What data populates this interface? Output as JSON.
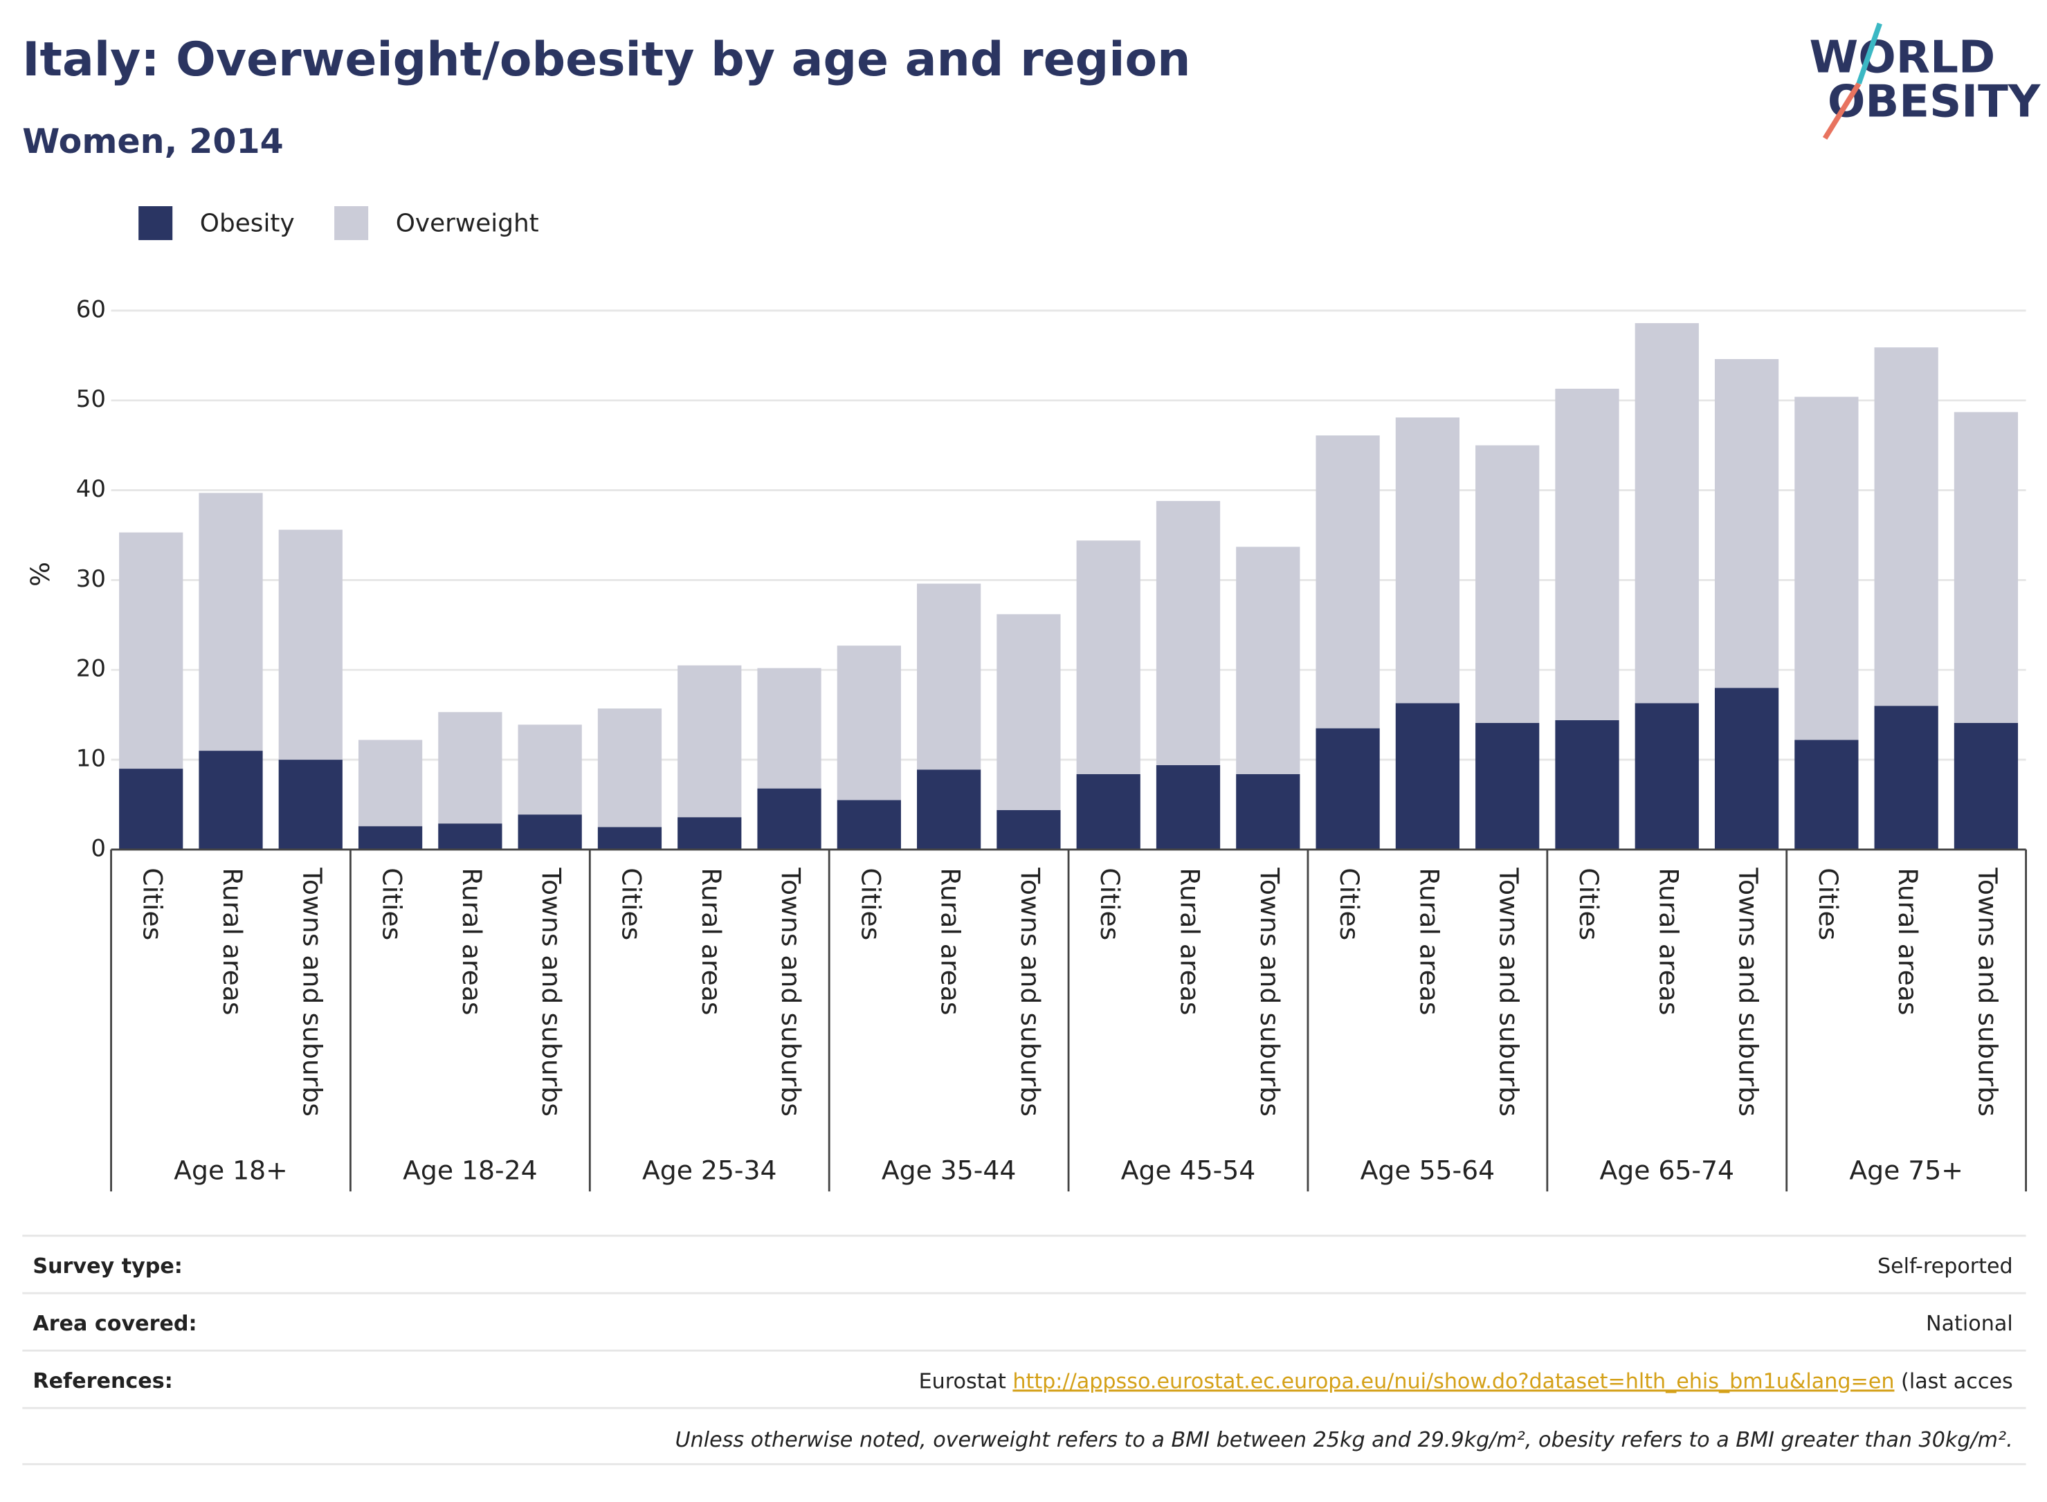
{
  "chart_data": {
    "type": "stacked_bar",
    "title": "Italy: Overweight/obesity by age and region",
    "subtitle": "Women, 2014",
    "logo": [
      "WORLD",
      "OBESITY"
    ],
    "y_label": "%",
    "groups": [
      "Age 18+",
      "Age 18-24",
      "Age 25-34",
      "Age 35-44",
      "Age 45-54",
      "Age 55-64",
      "Age 65-74",
      "Age 75+"
    ],
    "categories": [
      "Cities",
      "Rural areas",
      "Towns and suburbs",
      "Cities",
      "Rural areas",
      "Towns and suburbs",
      "Cities",
      "Rural areas",
      "Towns and suburbs",
      "Cities",
      "Rural areas",
      "Towns and suburbs",
      "Cities",
      "Rural areas",
      "Towns and suburbs",
      "Cities",
      "Rural areas",
      "Towns and suburbs",
      "Cities",
      "Rural areas",
      "Towns and suburbs",
      "Cities",
      "Rural areas",
      "Towns and suburbs"
    ],
    "series": [
      {
        "name": "Obesity",
        "color": "#2a3563",
        "values": [
          9.0,
          11.0,
          10.0,
          2.6,
          2.9,
          3.9,
          2.5,
          3.6,
          6.8,
          5.5,
          8.9,
          4.4,
          8.4,
          9.4,
          8.4,
          13.5,
          16.3,
          14.1,
          14.4,
          16.3,
          18.0,
          12.2,
          16.0,
          14.1
        ]
      },
      {
        "name": "Overweight",
        "color": "#cbccd8",
        "values": [
          26.3,
          28.7,
          25.6,
          9.6,
          12.4,
          10.0,
          13.2,
          16.9,
          13.4,
          17.2,
          20.7,
          21.8,
          26.0,
          29.4,
          25.3,
          32.6,
          31.8,
          30.9,
          36.9,
          42.3,
          36.6,
          38.2,
          39.9,
          34.6
        ]
      }
    ],
    "ylim": [
      0,
      60
    ],
    "yticks": [
      0,
      10,
      20,
      30,
      40,
      50,
      60
    ],
    "grid": true,
    "legend": "top-left"
  },
  "footer": {
    "rows": [
      {
        "label": "Survey type:",
        "value": "Self-reported"
      },
      {
        "label": "Area covered:",
        "value": "National"
      }
    ],
    "references": {
      "label": "References:",
      "source": "Eurostat",
      "url": "http://appsso.eurostat.ec.europa.eu/nui/show.do?dataset=hlth_ehis_bm1u&lang=en",
      "rest": "(last acces"
    },
    "note": "Unless otherwise noted, overweight refers to a BMI between 25kg and 29.9kg/m², obesity refers to a BMI greater than 30kg/m²."
  }
}
